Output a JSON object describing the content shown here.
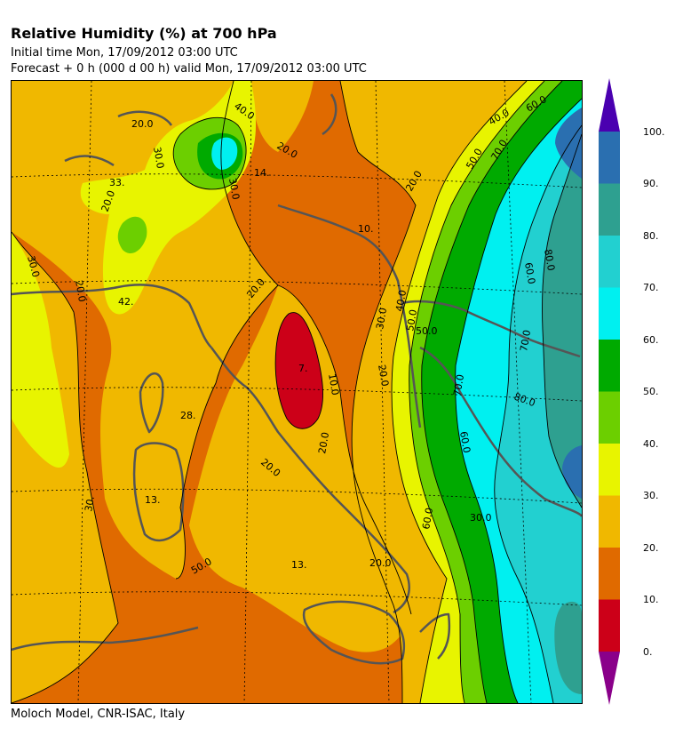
{
  "header": {
    "title": "Relative Humidity (%) at 700 hPa",
    "initial_time": "Initial time  Mon, 17/09/2012  03:00 UTC",
    "forecast": "Forecast +   0 h  (000 d 00 h)  valid Mon, 17/09/2012 03:00 UTC"
  },
  "footer": {
    "credit": "Moloch Model, CNR-ISAC, Italy"
  },
  "colors": {
    "band_0_10": "#cc0018",
    "band_10_20": "#e06a00",
    "band_20_30": "#f0b800",
    "band_30_40": "#e8f400",
    "band_40_50": "#6ccf00",
    "band_50_60": "#00aa00",
    "band_60_70": "#00f0f0",
    "band_70_80": "#22d0d0",
    "band_80_90": "#2ea090",
    "band_90_100": "#2a6fb0",
    "over": "#4a00b0",
    "under": "#8a008a",
    "coastline": "#555555",
    "contour": "#000000"
  },
  "colorbar": {
    "labels": [
      "100.",
      "90.",
      "80.",
      "70.",
      "60.",
      "50.",
      "40.",
      "30.",
      "20.",
      "10.",
      "0."
    ]
  },
  "map": {
    "contour_labels": [
      "20.0",
      "30.0",
      "40.0",
      "14.",
      "20.0",
      "30.0",
      "33.",
      "20.0",
      "30.0",
      "20.0",
      "42.",
      "10.",
      "20.0",
      "40.0",
      "50.0",
      "60.0",
      "70.0",
      "80.0",
      "50.0",
      "60.0",
      "70.0",
      "20.0",
      "30.0",
      "40.0",
      "50.0",
      "7.",
      "10.0",
      "20.0",
      "28.",
      "70.0",
      "80.0",
      "60.0",
      "20.0",
      "13.",
      "20.0",
      "30.",
      "13.",
      "20.0",
      "50.0",
      "30.0",
      "60.0"
    ]
  }
}
